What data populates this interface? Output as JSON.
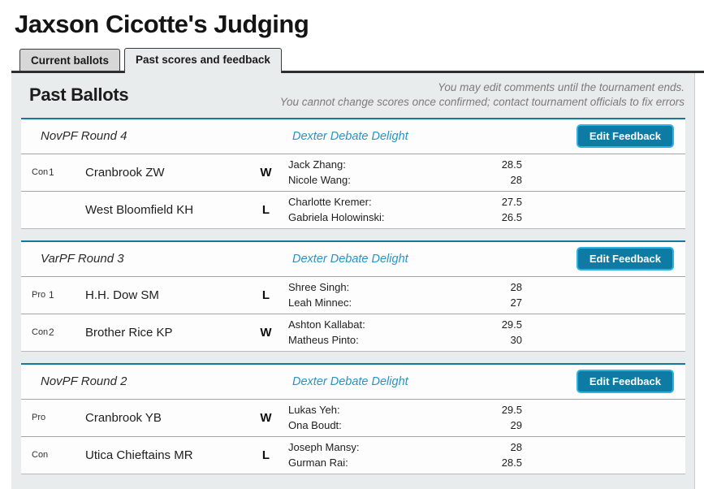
{
  "page": {
    "title": "Jaxson Cicotte's Judging"
  },
  "tabs": [
    {
      "label": "Current ballots",
      "active": false
    },
    {
      "label": "Past scores and feedback",
      "active": true
    }
  ],
  "panel": {
    "heading": "Past Ballots",
    "notice_line1": "You may edit comments until the tournament ends.",
    "notice_line2": "You cannot change scores once confirmed; contact tournament officials to fix errors"
  },
  "colors": {
    "link_blue": "#2794c4",
    "button_bg": "#0e7ba4",
    "button_border": "#2eb2e2",
    "card_top_border": "#17789f",
    "panel_bg": "#e9ecec"
  },
  "rounds": [
    {
      "name": "NovPF Round 4",
      "tournament": "Dexter Debate Delight",
      "button_label": "Edit Feedback",
      "entries": [
        {
          "side": "Con",
          "rank": "1",
          "team": "Cranbrook ZW",
          "result": "W",
          "speakers": [
            {
              "name": "Jack Zhang:",
              "score": "28.5"
            },
            {
              "name": "Nicole Wang:",
              "score": "28"
            }
          ]
        },
        {
          "side": "",
          "rank": "",
          "team": "West Bloomfield KH",
          "result": "L",
          "speakers": [
            {
              "name": "Charlotte Kremer:",
              "score": "27.5"
            },
            {
              "name": "Gabriela Holowinski:",
              "score": "26.5"
            }
          ]
        }
      ]
    },
    {
      "name": "VarPF Round 3",
      "tournament": "Dexter Debate Delight",
      "button_label": "Edit Feedback",
      "entries": [
        {
          "side": "Pro",
          "rank": "1",
          "team": "H.H. Dow SM",
          "result": "L",
          "speakers": [
            {
              "name": "Shree Singh:",
              "score": "28"
            },
            {
              "name": "Leah Minnec:",
              "score": "27"
            }
          ]
        },
        {
          "side": "Con",
          "rank": "2",
          "team": "Brother Rice KP",
          "result": "W",
          "speakers": [
            {
              "name": "Ashton Kallabat:",
              "score": "29.5"
            },
            {
              "name": "Matheus Pinto:",
              "score": "30"
            }
          ]
        }
      ]
    },
    {
      "name": "NovPF Round 2",
      "tournament": "Dexter Debate Delight",
      "button_label": "Edit Feedback",
      "entries": [
        {
          "side": "Pro",
          "rank": "",
          "team": "Cranbrook YB",
          "result": "W",
          "speakers": [
            {
              "name": "Lukas Yeh:",
              "score": "29.5"
            },
            {
              "name": "Ona Boudt:",
              "score": "29"
            }
          ]
        },
        {
          "side": "Con",
          "rank": "",
          "team": "Utica Chieftains MR",
          "result": "L",
          "speakers": [
            {
              "name": "Joseph Mansy:",
              "score": "28"
            },
            {
              "name": "Gurman Rai:",
              "score": "28.5"
            }
          ]
        }
      ]
    }
  ]
}
